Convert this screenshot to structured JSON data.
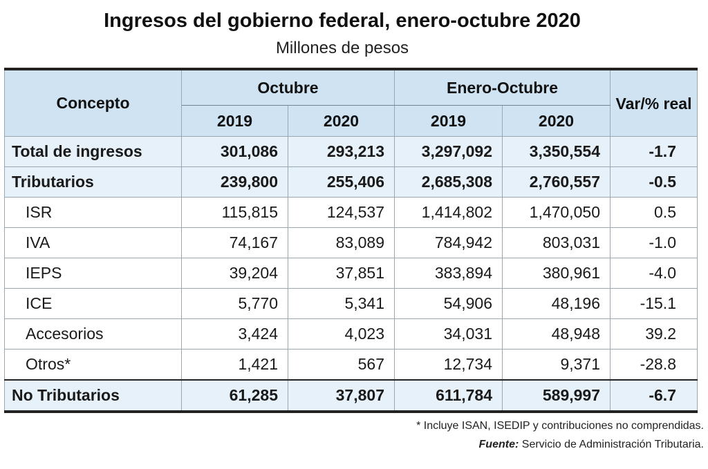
{
  "title": "Ingresos del gobierno federal, enero-octubre 2020",
  "subtitle": "Millones de pesos",
  "header": {
    "concepto": "Concepto",
    "octubre": "Octubre",
    "enero_octubre": "Enero-Octubre",
    "var": "Var/% real",
    "years": [
      "2019",
      "2020",
      "2019",
      "2020"
    ]
  },
  "rows": [
    {
      "label": "Total de ingresos",
      "values": [
        "301,086",
        "293,213",
        "3,297,092",
        "3,350,554",
        "-1.7"
      ]
    },
    {
      "label": "Tributarios",
      "values": [
        "239,800",
        "255,406",
        "2,685,308",
        "2,760,557",
        "-0.5"
      ]
    },
    {
      "label": "ISR",
      "values": [
        "115,815",
        "124,537",
        "1,414,802",
        "1,470,050",
        "0.5"
      ]
    },
    {
      "label": "IVA",
      "values": [
        "74,167",
        "83,089",
        "784,942",
        "803,031",
        "-1.0"
      ]
    },
    {
      "label": "IEPS",
      "values": [
        "39,204",
        "37,851",
        "383,894",
        "380,961",
        "-4.0"
      ]
    },
    {
      "label": "ICE",
      "values": [
        "5,770",
        "5,341",
        "54,906",
        "48,196",
        "-15.1"
      ]
    },
    {
      "label": "Accesorios",
      "values": [
        "3,424",
        "4,023",
        "34,031",
        "48,948",
        "39.2"
      ]
    },
    {
      "label": "Otros*",
      "values": [
        "1,421",
        "567",
        "12,734",
        "9,371",
        "-28.8"
      ]
    },
    {
      "label": "No Tributarios",
      "values": [
        "61,285",
        "37,807",
        "611,784",
        "589,997",
        "-6.7"
      ]
    }
  ],
  "footnote": "* Incluye ISAN, ISEDIP y contribuciones no comprendidas.",
  "source_label": "Fuente:",
  "source_text": "Servicio de Administración Tributaria."
}
